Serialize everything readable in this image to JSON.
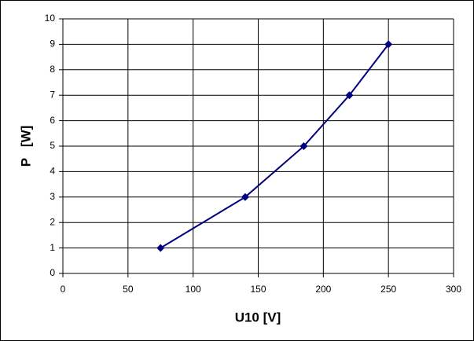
{
  "chart_data": {
    "type": "line",
    "x": [
      75,
      140,
      185,
      220,
      250
    ],
    "values": [
      1,
      3,
      5,
      7,
      9
    ],
    "color": "#000080",
    "xlabel": "U10 [V]",
    "ylabel": "P   [W]",
    "xlim": [
      0,
      300
    ],
    "xticks": [
      0,
      50,
      100,
      150,
      200,
      250,
      300
    ],
    "ylim": [
      0,
      10
    ],
    "yticks": [
      0,
      1,
      2,
      3,
      4,
      5,
      6,
      7,
      8,
      9,
      10
    ],
    "grid": true
  }
}
